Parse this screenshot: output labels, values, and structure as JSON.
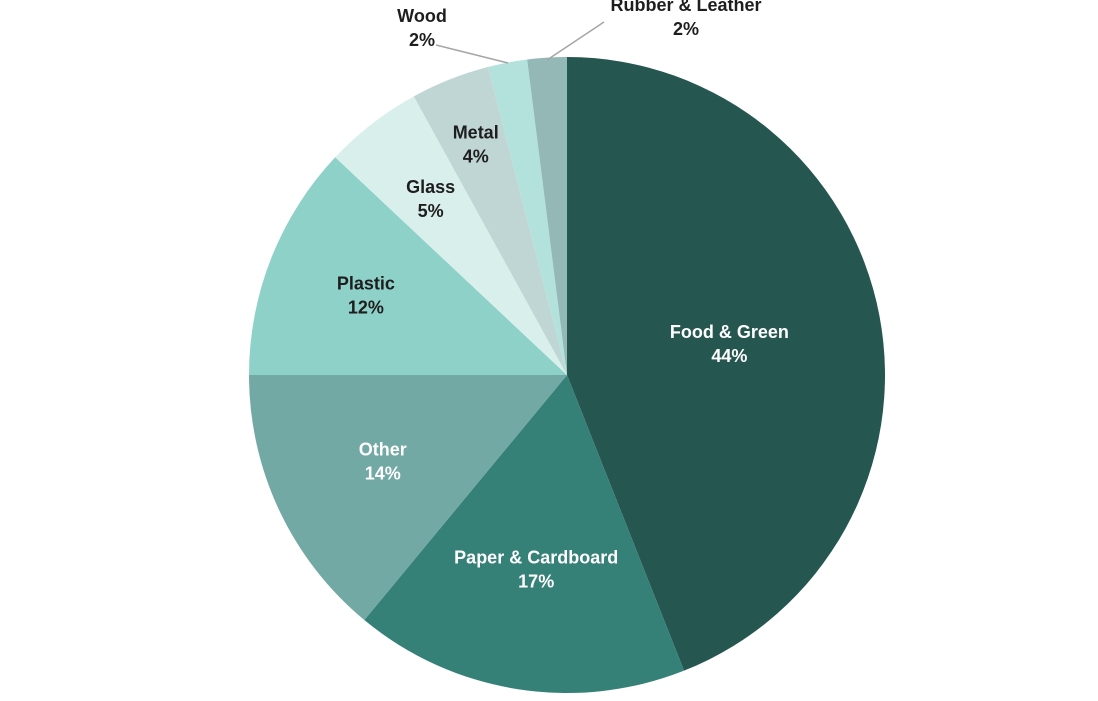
{
  "chart_data": {
    "type": "pie",
    "title": "",
    "slices": [
      {
        "label": "Food & Green",
        "value": 44,
        "display": "44%",
        "color": "#25564f",
        "text_color": "#ffffff"
      },
      {
        "label": "Paper & Cardboard",
        "value": 17,
        "display": "17%",
        "color": "#358178",
        "text_color": "#ffffff"
      },
      {
        "label": "Other",
        "value": 14,
        "display": "14%",
        "color": "#73a9a5",
        "text_color": "#ffffff"
      },
      {
        "label": "Plastic",
        "value": 12,
        "display": "12%",
        "color": "#8dd1c8",
        "text_color": "#1e1e1e"
      },
      {
        "label": "Glass",
        "value": 5,
        "display": "5%",
        "color": "#d9efeb",
        "text_color": "#1e1e1e"
      },
      {
        "label": "Metal",
        "value": 4,
        "display": "4%",
        "color": "#bfd6d4",
        "text_color": "#1e1e1e"
      },
      {
        "label": "Wood",
        "value": 2,
        "display": "2%",
        "color": "#b3e1dc",
        "text_color": "#1e1e1e"
      },
      {
        "label": "Rubber & Leather",
        "value": 2,
        "display": "2%",
        "color": "#93b8b6",
        "text_color": "#1e1e1e"
      }
    ],
    "start": "12 o'clock",
    "direction": "clockwise",
    "label_placement": "inside; outside with leader lines for Wood and Rubber & Leather",
    "legend": "none"
  }
}
